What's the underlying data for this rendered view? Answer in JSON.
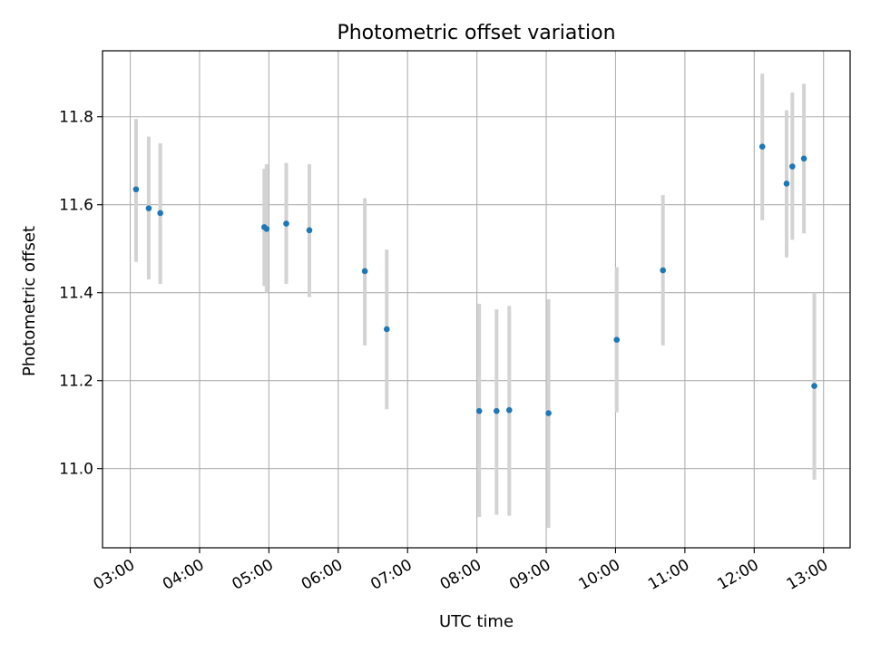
{
  "chart_data": {
    "type": "scatter",
    "title": "Photometric offset variation",
    "xlabel": "UTC time",
    "ylabel": "Photometric offset",
    "xlim": [
      "02:36",
      "13:23"
    ],
    "ylim": [
      10.82,
      11.95
    ],
    "x_ticks": [
      "03:00",
      "04:00",
      "05:00",
      "06:00",
      "07:00",
      "08:00",
      "09:00",
      "10:00",
      "11:00",
      "12:00",
      "13:00"
    ],
    "y_ticks": [
      11.0,
      11.2,
      11.4,
      11.6,
      11.8
    ],
    "grid": true,
    "colors": {
      "point": "#1f77b4",
      "errorbar": "#d3d3d3",
      "grid": "#b0b0b0"
    },
    "points": [
      {
        "x": "03:05",
        "y": 11.635,
        "ylow": 11.47,
        "yhigh": 11.795
      },
      {
        "x": "03:16",
        "y": 11.592,
        "ylow": 11.43,
        "yhigh": 11.755
      },
      {
        "x": "03:26",
        "y": 11.581,
        "ylow": 11.42,
        "yhigh": 11.74
      },
      {
        "x": "04:56",
        "y": 11.549,
        "ylow": 11.415,
        "yhigh": 11.682
      },
      {
        "x": "04:58",
        "y": 11.545,
        "ylow": 11.4,
        "yhigh": 11.692
      },
      {
        "x": "05:15",
        "y": 11.557,
        "ylow": 11.42,
        "yhigh": 11.695
      },
      {
        "x": "05:35",
        "y": 11.542,
        "ylow": 11.39,
        "yhigh": 11.692
      },
      {
        "x": "06:23",
        "y": 11.449,
        "ylow": 11.28,
        "yhigh": 11.615
      },
      {
        "x": "06:42",
        "y": 11.317,
        "ylow": 11.135,
        "yhigh": 11.498
      },
      {
        "x": "08:02",
        "y": 11.131,
        "ylow": 10.89,
        "yhigh": 11.375
      },
      {
        "x": "08:17",
        "y": 11.131,
        "ylow": 10.895,
        "yhigh": 11.362
      },
      {
        "x": "08:28",
        "y": 11.133,
        "ylow": 10.893,
        "yhigh": 11.37
      },
      {
        "x": "09:02",
        "y": 11.126,
        "ylow": 10.865,
        "yhigh": 11.385
      },
      {
        "x": "10:01",
        "y": 11.293,
        "ylow": 11.128,
        "yhigh": 11.458
      },
      {
        "x": "10:41",
        "y": 11.451,
        "ylow": 11.28,
        "yhigh": 11.622
      },
      {
        "x": "12:07",
        "y": 11.732,
        "ylow": 11.565,
        "yhigh": 11.898
      },
      {
        "x": "12:28",
        "y": 11.648,
        "ylow": 11.48,
        "yhigh": 11.815
      },
      {
        "x": "12:33",
        "y": 11.687,
        "ylow": 11.52,
        "yhigh": 11.855
      },
      {
        "x": "12:43",
        "y": 11.705,
        "ylow": 11.535,
        "yhigh": 11.875
      },
      {
        "x": "12:52",
        "y": 11.188,
        "ylow": 10.975,
        "yhigh": 11.4
      }
    ]
  }
}
